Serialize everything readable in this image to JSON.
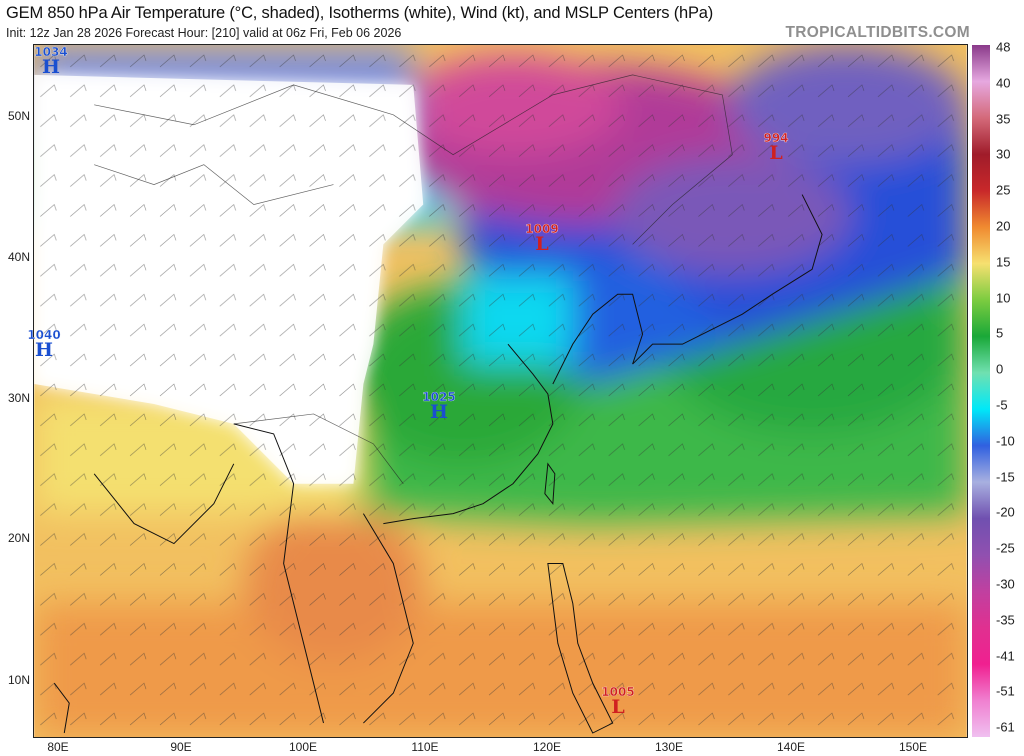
{
  "header": {
    "title": "GEM 850 hPa Air Temperature (°C, shaded), Isotherms (white), Wind (kt), and MSLP Centers (hPa)",
    "subtitle": "Init: 12z Jan 28 2026   Forecast Hour: [210]   valid at 06z Fri, Feb 06 2026",
    "watermark": "TROPICALTIDBITS.COM"
  },
  "axes": {
    "lat_labels": [
      "50N",
      "40N",
      "30N",
      "20N",
      "10N"
    ],
    "lon_labels": [
      "80E",
      "90E",
      "100E",
      "110E",
      "120E",
      "130E",
      "140E",
      "150E"
    ]
  },
  "colorbar": {
    "labels": [
      "48",
      "40",
      "35",
      "30",
      "25",
      "20",
      "15",
      "10",
      "5",
      "0",
      "-5",
      "-10",
      "-15",
      "-20",
      "-25",
      "-30",
      "-35",
      "-41",
      "-51",
      "-61"
    ],
    "colors": [
      "#8a3a8a",
      "#e6a8e0",
      "#d46a7a",
      "#a01c2a",
      "#c8282a",
      "#f08a30",
      "#f6e070",
      "#7ccc40",
      "#1aa838",
      "#70e0b0",
      "#00e8f8",
      "#3060e0",
      "#a8b0e0",
      "#7050b0",
      "#9050b0",
      "#c040a0",
      "#e03090",
      "#f02090",
      "#f080d0",
      "#f0c0f0"
    ]
  },
  "pressure_centers": [
    {
      "value": "1034",
      "type": "H",
      "color": "#1a4fd0"
    },
    {
      "value": "1040",
      "type": "H",
      "color": "#1a4fd0"
    },
    {
      "value": "1025",
      "type": "H",
      "color": "#1a4fd0"
    },
    {
      "value": "1009",
      "type": "L",
      "color": "#d02020"
    },
    {
      "value": "994",
      "type": "L",
      "color": "#d02020"
    },
    {
      "value": "1005",
      "type": "L",
      "color": "#d02020"
    }
  ]
}
